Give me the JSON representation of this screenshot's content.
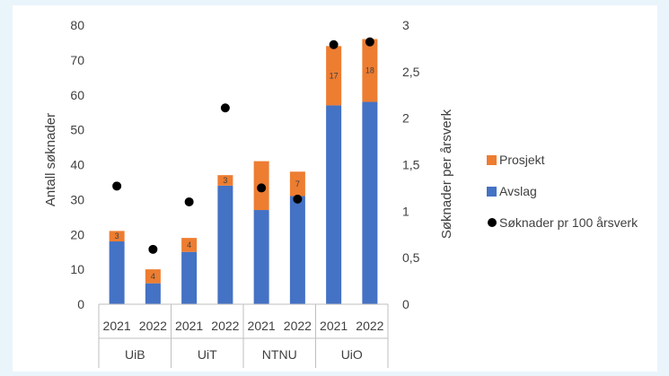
{
  "chart_data": {
    "type": "bar",
    "stacked": true,
    "title": "",
    "groups": [
      "UiB",
      "UiT",
      "NTNU",
      "UiO"
    ],
    "years": [
      "2021",
      "2022"
    ],
    "categories": [
      "2021 UiB",
      "2022 UiB",
      "2021 UiT",
      "2022 UiT",
      "2021 NTNU",
      "2022 NTNU",
      "2021 UiO",
      "2022 UiO"
    ],
    "series": [
      {
        "name": "Avslag",
        "color": "#4472c4",
        "axis": "left",
        "values": [
          18,
          6,
          15,
          34,
          27,
          31,
          57,
          58
        ]
      },
      {
        "name": "Prosjekt",
        "color": "#ed7d31",
        "axis": "left",
        "values": [
          3,
          4,
          4,
          3,
          14,
          7,
          17,
          18
        ]
      },
      {
        "name": "Søknader pr 100 årsverk",
        "color": "#000000",
        "axis": "right",
        "marker": "circle",
        "values": [
          1.27,
          0.59,
          1.1,
          2.11,
          1.25,
          1.13,
          2.79,
          2.82
        ]
      }
    ],
    "data_labels": [
      "3",
      "4",
      "4",
      "3",
      "",
      "7",
      "17",
      "18"
    ],
    "ylabel": "Antall søknader",
    "y2label": "Søknader per årsverk",
    "ylim": [
      0,
      80
    ],
    "yticks": [
      "0",
      "10",
      "20",
      "30",
      "40",
      "50",
      "60",
      "70",
      "80"
    ],
    "y2lim": [
      0,
      3
    ],
    "y2ticks": [
      "0",
      "0,5",
      "1",
      "1,5",
      "2",
      "2,5",
      "3"
    ],
    "grid": false,
    "legend_position": "right",
    "legend": [
      "Prosjekt",
      "Avslag",
      "Søknader pr 100 årsverk"
    ]
  }
}
